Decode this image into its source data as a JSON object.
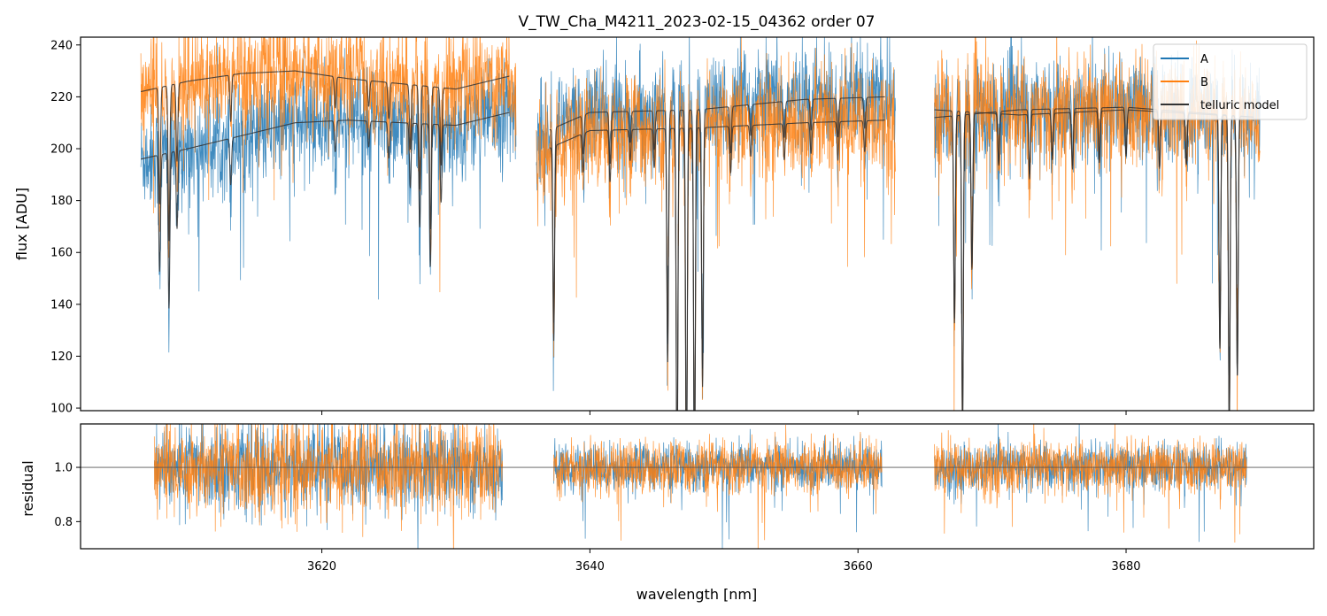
{
  "chart_data": [
    {
      "type": "line",
      "title": "V_TW_Cha_M4211_2023-02-15_04362  order 07",
      "xlabel": "",
      "ylabel": "flux [ADU]",
      "xlim": [
        3602,
        3694
      ],
      "ylim": [
        99,
        243
      ],
      "xticks": [
        3620,
        3640,
        3660,
        3680
      ],
      "yticks": [
        100,
        120,
        140,
        160,
        180,
        200,
        220,
        240
      ],
      "ytick_labels": [
        "100",
        "120",
        "140",
        "160",
        "180",
        "200",
        "220",
        "240"
      ],
      "legend": {
        "placement": "top-right"
      },
      "series": [
        {
          "name": "A",
          "color": "#1f77b4",
          "segments": [
            [
              3606.5,
              3634.5
            ],
            [
              3636.0,
              3662.8
            ],
            [
              3665.7,
              3690.0
            ]
          ],
          "base_points": [
            [
              3606.5,
              196
            ],
            [
              3610,
              200
            ],
            [
              3614,
              205
            ],
            [
              3618,
              210
            ],
            [
              3622,
              211
            ],
            [
              3626,
              210
            ],
            [
              3630,
              209
            ],
            [
              3634,
              214
            ],
            [
              3636,
              205
            ],
            [
              3640,
              214
            ],
            [
              3648,
              215
            ],
            [
              3656,
              219
            ],
            [
              3662,
              220
            ],
            [
              3665.7,
              212
            ],
            [
              3672,
              215
            ],
            [
              3680,
              216
            ],
            [
              3690,
              212
            ]
          ],
          "noise": 10
        },
        {
          "name": "B",
          "color": "#ff7f0e",
          "segments": [
            [
              3606.5,
              3634.5
            ],
            [
              3636.0,
              3662.8
            ],
            [
              3665.7,
              3690.0
            ]
          ],
          "base_points": [
            [
              3606.5,
              222
            ],
            [
              3610,
              226
            ],
            [
              3614,
              229
            ],
            [
              3618,
              230
            ],
            [
              3622,
              227
            ],
            [
              3626,
              225
            ],
            [
              3630,
              223
            ],
            [
              3634,
              228
            ],
            [
              3636,
              198
            ],
            [
              3640,
              207
            ],
            [
              3648,
              208
            ],
            [
              3656,
              210
            ],
            [
              3662,
              211
            ],
            [
              3665.7,
              215
            ],
            [
              3672,
              213
            ],
            [
              3680,
              215
            ],
            [
              3690,
              212
            ]
          ],
          "noise": 11
        },
        {
          "name": "telluric model",
          "color": "#333333",
          "segments": [
            [
              3606.5,
              3634.0
            ],
            [
              3637.0,
              3662.0
            ],
            [
              3665.7,
              3689.5
            ]
          ],
          "lines": [
            [
              3607.9,
              45
            ],
            [
              3608.6,
              60
            ],
            [
              3609.2,
              30
            ],
            [
              3613.2,
              18
            ],
            [
              3621.0,
              12
            ],
            [
              3623.5,
              10
            ],
            [
              3625.0,
              14
            ],
            [
              3626.6,
              25
            ],
            [
              3627.3,
              40
            ],
            [
              3628.1,
              55
            ],
            [
              3628.9,
              30
            ],
            [
              3637.3,
              75
            ],
            [
              3639.5,
              15
            ],
            [
              3641.5,
              20
            ],
            [
              3643.0,
              12
            ],
            [
              3644.8,
              15
            ],
            [
              3645.8,
              90
            ],
            [
              3646.5,
              140
            ],
            [
              3647.2,
              140
            ],
            [
              3647.8,
              140
            ],
            [
              3648.4,
              100
            ],
            [
              3650.5,
              18
            ],
            [
              3652.0,
              12
            ],
            [
              3654.5,
              14
            ],
            [
              3656.5,
              12
            ],
            [
              3658.5,
              15
            ],
            [
              3660.5,
              12
            ],
            [
              3662.8,
              15
            ],
            [
              3667.2,
              80
            ],
            [
              3667.8,
              120
            ],
            [
              3668.5,
              60
            ],
            [
              3670.5,
              20
            ],
            [
              3672.8,
              25
            ],
            [
              3674.5,
              18
            ],
            [
              3676.0,
              22
            ],
            [
              3678.0,
              20
            ],
            [
              3680.0,
              18
            ],
            [
              3682.5,
              22
            ],
            [
              3684.5,
              20
            ],
            [
              3687.0,
              90
            ],
            [
              3687.7,
              120
            ],
            [
              3688.3,
              100
            ]
          ]
        }
      ]
    },
    {
      "type": "line",
      "title": "",
      "xlabel": "wavelength [nm]",
      "ylabel": "residual",
      "xlim": [
        3602,
        3694
      ],
      "ylim": [
        0.7,
        1.16
      ],
      "xticks": [
        3620,
        3640,
        3660,
        3680
      ],
      "xtick_labels": [
        "3620",
        "3640",
        "3660",
        "3680"
      ],
      "yticks": [
        0.8,
        1.0
      ],
      "ytick_labels": [
        "0.8",
        "1.0"
      ],
      "reference_line": 1.0,
      "series": [
        {
          "name": "A",
          "color": "#1f77b4",
          "segments": [
            [
              3607.5,
              3633.5
            ],
            [
              3637.3,
              3661.8
            ],
            [
              3665.7,
              3689.0
            ]
          ],
          "noise": 0.045
        },
        {
          "name": "B",
          "color": "#ff7f0e",
          "segments": [
            [
              3607.5,
              3633.5
            ],
            [
              3637.3,
              3661.8
            ],
            [
              3665.7,
              3689.0
            ]
          ],
          "noise": 0.05
        }
      ]
    }
  ]
}
